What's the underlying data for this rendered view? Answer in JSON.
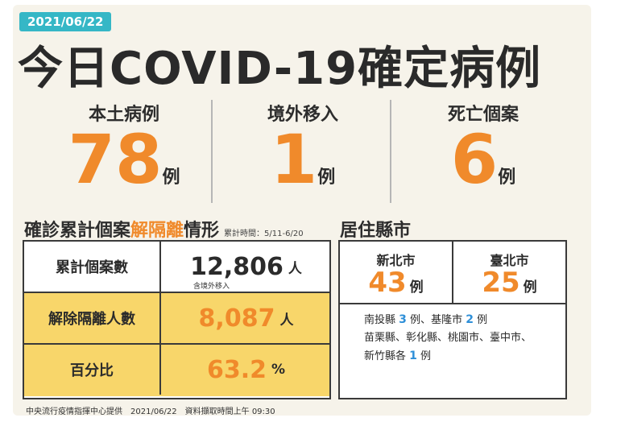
{
  "date": "2021/06/22",
  "title": "今日COVID-19確定病例",
  "stats": [
    {
      "label": "本土病例",
      "value": "78",
      "unit": "例"
    },
    {
      "label": "境外移入",
      "value": "1",
      "unit": "例"
    },
    {
      "label": "死亡個案",
      "value": "6",
      "unit": "例"
    }
  ],
  "cumulative": {
    "title_pre": "確診累計個案",
    "title_hl": "解隔離",
    "title_post": "情形",
    "period": "累計時間：5/11-6/20",
    "rows": [
      {
        "label": "累計個案數",
        "value": "12,806",
        "unit": "人",
        "note": "含境外移入"
      },
      {
        "label": "解除隔離人數",
        "value": "8,087",
        "unit": "人"
      },
      {
        "label": "百分比",
        "value": "63.2",
        "unit": "%"
      }
    ]
  },
  "residence": {
    "title": "居住縣市",
    "cities": [
      {
        "name": "新北市",
        "value": "43",
        "unit": "例"
      },
      {
        "name": "臺北市",
        "value": "25",
        "unit": "例"
      }
    ],
    "line1": {
      "a": "南投縣",
      "a_num": "3",
      "a_unit": "例、",
      "b": "基隆市",
      "b_num": "2",
      "b_unit": "例"
    },
    "line2": "苗栗縣、彰化縣、桃園市、臺中市、",
    "line3": {
      "pre": "新竹縣各",
      "num": "1",
      "unit": "例"
    }
  },
  "footer": "中央流行疫情指揮中心提供　2021/06/22　資料擷取時間上午 09:30"
}
